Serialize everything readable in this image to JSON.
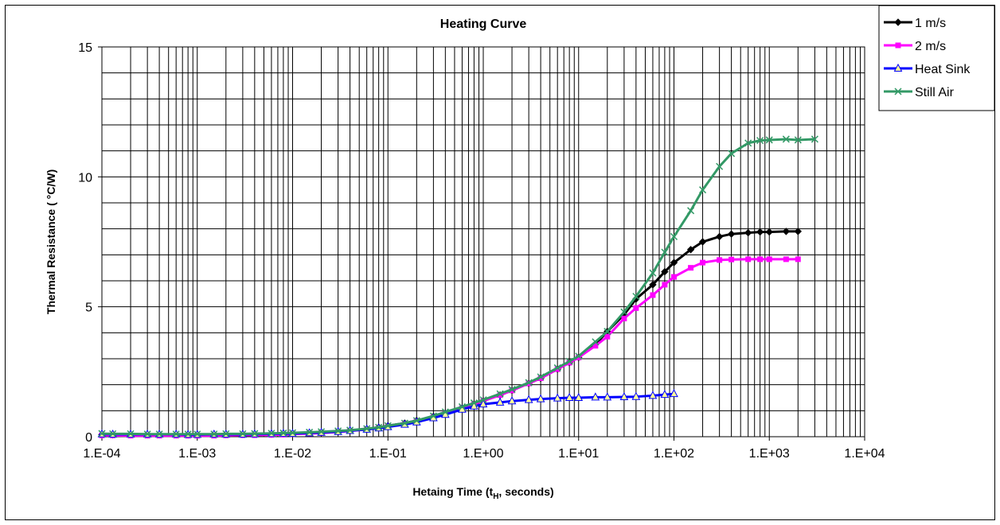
{
  "chart_data": {
    "type": "line",
    "title": "Heating Curve",
    "xlabel": "Hetaing Time (t_H, seconds)",
    "xlabel_main": "Hetaing Time (t",
    "xlabel_sub": "H",
    "xlabel_tail": ", seconds)",
    "ylabel": "Thermal Resistance ( °C/W)",
    "xscale": "log",
    "xlim": [
      0.0001,
      10000
    ],
    "ylim": [
      0,
      15
    ],
    "xticks": [
      "1.E-04",
      "1.E-03",
      "1.E-02",
      "1.E-01",
      "1.E+00",
      "1.E+01",
      "1.E+02",
      "1.E+03",
      "1.E+04"
    ],
    "yticks": [
      "0",
      "5",
      "10",
      "15"
    ],
    "grid": true,
    "legend_position": "top-right, outside plot",
    "series": [
      {
        "name": "1 m/s",
        "color": "#000000",
        "marker": "diamond",
        "points": [
          [
            0.0001,
            0.08
          ],
          [
            0.00013,
            0.07
          ],
          [
            0.0002,
            0.07
          ],
          [
            0.0003,
            0.07
          ],
          [
            0.0004,
            0.07
          ],
          [
            0.0006,
            0.07
          ],
          [
            0.0008,
            0.07
          ],
          [
            0.001,
            0.07
          ],
          [
            0.0015,
            0.08
          ],
          [
            0.002,
            0.08
          ],
          [
            0.003,
            0.09
          ],
          [
            0.004,
            0.09
          ],
          [
            0.006,
            0.1
          ],
          [
            0.008,
            0.11
          ],
          [
            0.01,
            0.12
          ],
          [
            0.015,
            0.14
          ],
          [
            0.02,
            0.16
          ],
          [
            0.03,
            0.19
          ],
          [
            0.04,
            0.23
          ],
          [
            0.06,
            0.3
          ],
          [
            0.08,
            0.36
          ],
          [
            0.1,
            0.42
          ],
          [
            0.15,
            0.52
          ],
          [
            0.2,
            0.62
          ],
          [
            0.3,
            0.78
          ],
          [
            0.4,
            0.9
          ],
          [
            0.6,
            1.1
          ],
          [
            0.8,
            1.25
          ],
          [
            1,
            1.38
          ],
          [
            1.5,
            1.6
          ],
          [
            2,
            1.78
          ],
          [
            3,
            2.05
          ],
          [
            4,
            2.25
          ],
          [
            6,
            2.6
          ],
          [
            8,
            2.85
          ],
          [
            10,
            3.05
          ],
          [
            15,
            3.55
          ],
          [
            20,
            4.05
          ],
          [
            30,
            4.7
          ],
          [
            40,
            5.3
          ],
          [
            60,
            5.85
          ],
          [
            80,
            6.35
          ],
          [
            100,
            6.7
          ],
          [
            150,
            7.2
          ],
          [
            200,
            7.5
          ],
          [
            300,
            7.7
          ],
          [
            400,
            7.8
          ],
          [
            600,
            7.85
          ],
          [
            800,
            7.88
          ],
          [
            1000,
            7.88
          ],
          [
            1500,
            7.9
          ],
          [
            2000,
            7.9
          ]
        ]
      },
      {
        "name": "2 m/s",
        "color": "#FF00FF",
        "marker": "square",
        "points": [
          [
            0.0001,
            0.05
          ],
          [
            0.00013,
            0.05
          ],
          [
            0.0002,
            0.04
          ],
          [
            0.0003,
            0.04
          ],
          [
            0.0004,
            0.04
          ],
          [
            0.0006,
            0.04
          ],
          [
            0.0008,
            0.04
          ],
          [
            0.001,
            0.04
          ],
          [
            0.0015,
            0.04
          ],
          [
            0.002,
            0.05
          ],
          [
            0.003,
            0.06
          ],
          [
            0.004,
            0.06
          ],
          [
            0.006,
            0.07
          ],
          [
            0.008,
            0.08
          ],
          [
            0.01,
            0.1
          ],
          [
            0.015,
            0.12
          ],
          [
            0.02,
            0.14
          ],
          [
            0.03,
            0.18
          ],
          [
            0.04,
            0.22
          ],
          [
            0.06,
            0.28
          ],
          [
            0.08,
            0.34
          ],
          [
            0.1,
            0.4
          ],
          [
            0.15,
            0.5
          ],
          [
            0.2,
            0.6
          ],
          [
            0.3,
            0.76
          ],
          [
            0.4,
            0.88
          ],
          [
            0.6,
            1.1
          ],
          [
            0.8,
            1.25
          ],
          [
            1,
            1.38
          ],
          [
            1.5,
            1.6
          ],
          [
            2,
            1.78
          ],
          [
            3,
            2.05
          ],
          [
            4,
            2.25
          ],
          [
            6,
            2.6
          ],
          [
            8,
            2.85
          ],
          [
            10,
            3.05
          ],
          [
            15,
            3.5
          ],
          [
            20,
            3.85
          ],
          [
            30,
            4.55
          ],
          [
            40,
            4.95
          ],
          [
            60,
            5.45
          ],
          [
            80,
            5.85
          ],
          [
            100,
            6.15
          ],
          [
            150,
            6.5
          ],
          [
            200,
            6.7
          ],
          [
            300,
            6.8
          ],
          [
            400,
            6.82
          ],
          [
            600,
            6.83
          ],
          [
            800,
            6.83
          ],
          [
            1000,
            6.83
          ],
          [
            1500,
            6.83
          ],
          [
            2000,
            6.83
          ]
        ]
      },
      {
        "name": "Heat Sink",
        "color": "#0000FF",
        "marker": "triangle",
        "points": [
          [
            0.0001,
            0.1
          ],
          [
            0.00013,
            0.09
          ],
          [
            0.0002,
            0.09
          ],
          [
            0.0003,
            0.09
          ],
          [
            0.0004,
            0.09
          ],
          [
            0.0006,
            0.09
          ],
          [
            0.0008,
            0.08
          ],
          [
            0.001,
            0.08
          ],
          [
            0.0015,
            0.09
          ],
          [
            0.002,
            0.09
          ],
          [
            0.003,
            0.09
          ],
          [
            0.004,
            0.1
          ],
          [
            0.006,
            0.11
          ],
          [
            0.008,
            0.12
          ],
          [
            0.01,
            0.12
          ],
          [
            0.015,
            0.14
          ],
          [
            0.02,
            0.16
          ],
          [
            0.03,
            0.19
          ],
          [
            0.04,
            0.23
          ],
          [
            0.06,
            0.28
          ],
          [
            0.08,
            0.33
          ],
          [
            0.1,
            0.38
          ],
          [
            0.15,
            0.47
          ],
          [
            0.2,
            0.56
          ],
          [
            0.3,
            0.72
          ],
          [
            0.4,
            0.85
          ],
          [
            0.6,
            1.05
          ],
          [
            0.8,
            1.17
          ],
          [
            1,
            1.25
          ],
          [
            1.5,
            1.32
          ],
          [
            2,
            1.37
          ],
          [
            3,
            1.42
          ],
          [
            4,
            1.45
          ],
          [
            6,
            1.48
          ],
          [
            8,
            1.5
          ],
          [
            10,
            1.5
          ],
          [
            15,
            1.52
          ],
          [
            20,
            1.52
          ],
          [
            30,
            1.53
          ],
          [
            40,
            1.54
          ],
          [
            60,
            1.58
          ],
          [
            80,
            1.62
          ],
          [
            100,
            1.65
          ]
        ]
      },
      {
        "name": "Still Air",
        "color": "#339966",
        "marker": "x",
        "points": [
          [
            0.0001,
            0.12
          ],
          [
            0.00013,
            0.11
          ],
          [
            0.0002,
            0.11
          ],
          [
            0.0003,
            0.1
          ],
          [
            0.0004,
            0.1
          ],
          [
            0.0006,
            0.1
          ],
          [
            0.0008,
            0.1
          ],
          [
            0.001,
            0.1
          ],
          [
            0.0015,
            0.1
          ],
          [
            0.002,
            0.11
          ],
          [
            0.003,
            0.11
          ],
          [
            0.004,
            0.12
          ],
          [
            0.006,
            0.13
          ],
          [
            0.008,
            0.14
          ],
          [
            0.01,
            0.15
          ],
          [
            0.015,
            0.17
          ],
          [
            0.02,
            0.19
          ],
          [
            0.03,
            0.22
          ],
          [
            0.04,
            0.25
          ],
          [
            0.06,
            0.31
          ],
          [
            0.08,
            0.36
          ],
          [
            0.1,
            0.42
          ],
          [
            0.15,
            0.52
          ],
          [
            0.2,
            0.62
          ],
          [
            0.3,
            0.8
          ],
          [
            0.4,
            0.95
          ],
          [
            0.6,
            1.15
          ],
          [
            0.8,
            1.3
          ],
          [
            1,
            1.42
          ],
          [
            1.5,
            1.65
          ],
          [
            2,
            1.82
          ],
          [
            3,
            2.08
          ],
          [
            4,
            2.3
          ],
          [
            6,
            2.65
          ],
          [
            8,
            2.9
          ],
          [
            10,
            3.1
          ],
          [
            15,
            3.65
          ],
          [
            20,
            4.05
          ],
          [
            30,
            4.8
          ],
          [
            40,
            5.4
          ],
          [
            60,
            6.3
          ],
          [
            80,
            7.1
          ],
          [
            100,
            7.7
          ],
          [
            150,
            8.7
          ],
          [
            200,
            9.5
          ],
          [
            300,
            10.4
          ],
          [
            400,
            10.9
          ],
          [
            600,
            11.3
          ],
          [
            800,
            11.4
          ],
          [
            1000,
            11.42
          ],
          [
            1500,
            11.45
          ],
          [
            2000,
            11.42
          ],
          [
            3000,
            11.45
          ]
        ]
      }
    ]
  }
}
